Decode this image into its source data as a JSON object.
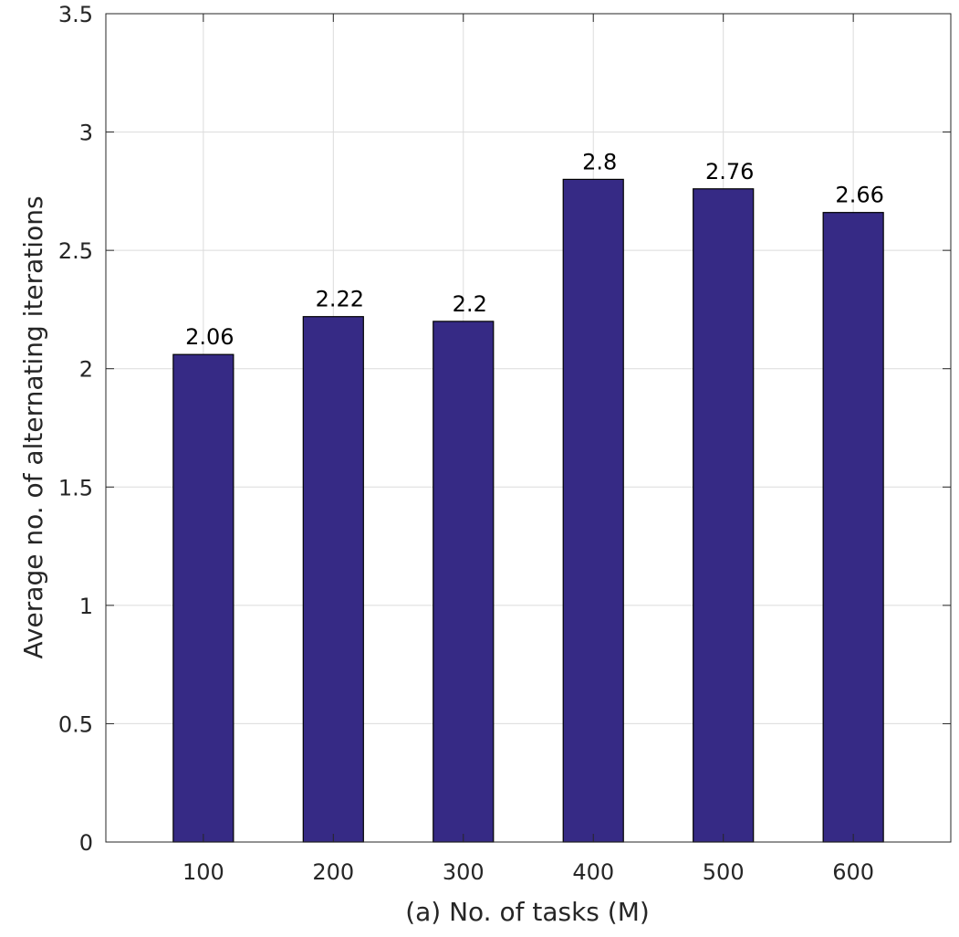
{
  "chart_data": {
    "type": "bar",
    "categories": [
      "100",
      "200",
      "300",
      "400",
      "500",
      "600"
    ],
    "values": [
      2.06,
      2.22,
      2.2,
      2.8,
      2.76,
      2.66
    ],
    "data_labels": [
      "2.06",
      "2.22",
      "2.2",
      "2.8",
      "2.76",
      "2.66"
    ],
    "title": "",
    "xlabel": "(a) No. of tasks (M)",
    "ylabel": "Average no. of alternating iterations",
    "ylim": [
      0,
      3.5
    ],
    "xlim": [
      0.25,
      6.75
    ],
    "yticks": [
      0,
      0.5,
      1,
      1.5,
      2,
      2.5,
      3,
      3.5
    ],
    "ytick_labels": [
      "0",
      "0.5",
      "1",
      "1.5",
      "2",
      "2.5",
      "3",
      "3.5"
    ],
    "grid": true,
    "bar_color": "#362a85",
    "legend": "none"
  }
}
